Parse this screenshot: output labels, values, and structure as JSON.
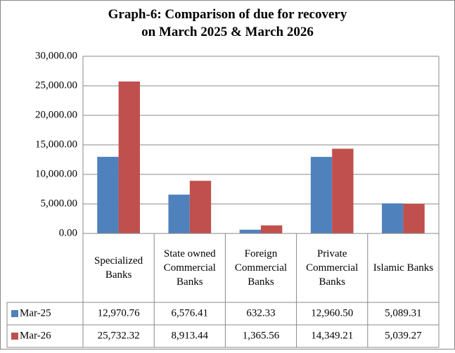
{
  "chart_data": {
    "type": "bar",
    "title": "Graph-6: Comparison of due for recovery on March 2025 & March 2026",
    "categories": [
      "Specialized Banks",
      "State owned Commercial Banks",
      "Foreign Commercial Banks",
      "Private Commercial Banks",
      "Islamic Banks"
    ],
    "series": [
      {
        "name": "Mar-25",
        "color": "#4f81bd",
        "values": [
          12970.76,
          6576.41,
          632.33,
          12960.5,
          5089.31
        ],
        "value_labels": [
          "12,970.76",
          "6,576.41",
          "632.33",
          "12,960.50",
          "5,089.31"
        ]
      },
      {
        "name": "Mar-26",
        "color": "#c0504d",
        "values": [
          25732.32,
          8913.44,
          1365.56,
          14349.21,
          5039.27
        ],
        "value_labels": [
          "25,732.32",
          "8,913.44",
          "1,365.56",
          "14,349.21",
          "5,039.27"
        ]
      }
    ],
    "ylim": [
      0,
      30000
    ],
    "yticks": [
      {
        "value": 0,
        "label": "0.00"
      },
      {
        "value": 5000,
        "label": "5,000.00"
      },
      {
        "value": 10000,
        "label": "10,000.00"
      },
      {
        "value": 15000,
        "label": "15,000.00"
      },
      {
        "value": 20000,
        "label": "20,000.00"
      },
      {
        "value": 25000,
        "label": "25,000.00"
      },
      {
        "value": 30000,
        "label": "30,000.00"
      }
    ],
    "grid": true
  }
}
